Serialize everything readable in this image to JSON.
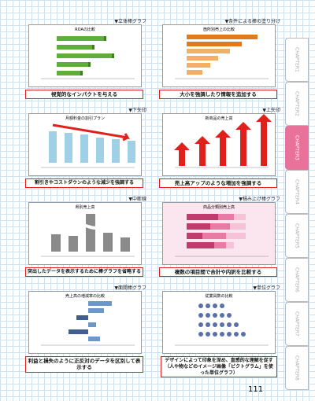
{
  "panels": [
    {
      "heading": "▼立体棒グラフ",
      "chart_title": "ROAの比較",
      "caption": "視覚的なインパクトを与える"
    },
    {
      "heading": "▼条件による棒の塗り分け",
      "chart_title": "箇所別売上の比較",
      "caption": "大小を強調したり情報を追加する"
    },
    {
      "heading": "▼下矢印",
      "chart_title": "月額料金の割引プラン",
      "caption": "割引きやコストダウンのような減少を強調する"
    },
    {
      "heading": "▼上矢印",
      "chart_title": "新商品の売上高",
      "caption": "売上高アップのような増加を強調する"
    },
    {
      "heading": "▼中断線",
      "chart_title": "県別売上高",
      "caption": "突出したデータを表示するために棒グラフを省略する"
    },
    {
      "heading": "▼積み上げ棒グラフ",
      "chart_title": "商品分類別売上高",
      "caption": "複数の項目間で合計や内訳を比較する"
    },
    {
      "heading": "▼面開棒グラフ",
      "chart_title": "売上高の増減率の比較",
      "caption": "利益と損失のように正反対のデータを区別して表示する"
    },
    {
      "heading": "▼単位グラフ",
      "chart_title": "従業員数の比較",
      "caption": "デザインによって印象を深め、直感的な理解を促す（人や物などのイメージ画像「ピクトグラム」を使った単位グラフ）"
    }
  ],
  "tabs": [
    "CHAPTER1",
    "CHAPTER2",
    "CHAPTER3",
    "CHAPTER4",
    "CHAPTER5",
    "CHAPTER6",
    "CHAPTER7",
    "CHAPTER8"
  ],
  "page_number": "111"
}
